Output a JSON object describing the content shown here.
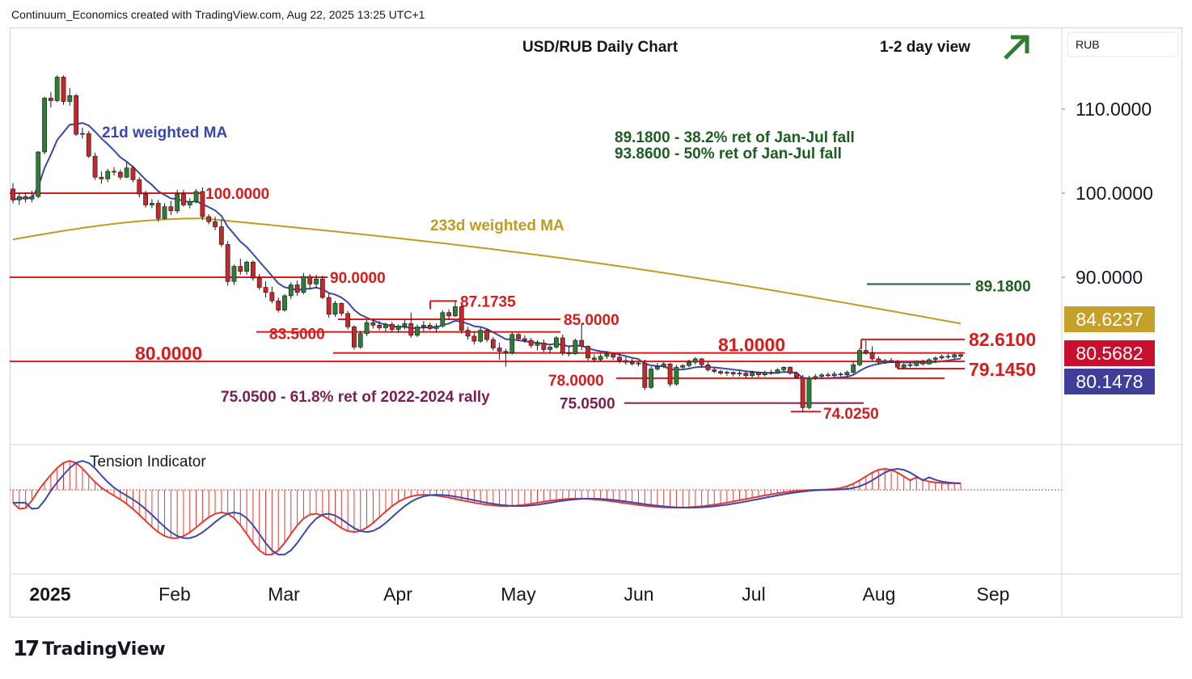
{
  "header": {
    "text": "Continuum_Economics created with TradingView.com, Aug 22, 2025 13:25 UTC+1"
  },
  "brand": {
    "mark": "17",
    "name": "TradingView"
  },
  "chart_data": {
    "type": "candlestick",
    "title": "USD/RUB Daily Chart",
    "view_label": "1-2 day view",
    "view_direction": "up",
    "currency_label": "RUB",
    "ylim": [
      70.3,
      119.7
    ],
    "y_ticks": [
      {
        "value": 110,
        "label": "110.0000"
      },
      {
        "value": 100,
        "label": "100.0000"
      },
      {
        "value": 90,
        "label": "90.0000"
      }
    ],
    "x_ticks": [
      "2025",
      "Feb",
      "Mar",
      "Apr",
      "May",
      "Jun",
      "Jul",
      "Aug",
      "Sep"
    ],
    "price_badges": [
      {
        "value": 84.6237,
        "label": "84.6237",
        "color": "#c7a02a"
      },
      {
        "value": 80.5682,
        "label": "80.5682",
        "color": "#c8102e"
      },
      {
        "value": 80.1478,
        "label": "80.1478",
        "color": "#3f3f9a"
      }
    ],
    "levels": [
      {
        "value": 100.0,
        "label": "100.0000"
      },
      {
        "value": 90.0,
        "label": "90.0000"
      },
      {
        "value": 87.1735,
        "label": "87.1735"
      },
      {
        "value": 85.0,
        "label": "85.0000"
      },
      {
        "value": 83.5,
        "label": "83.5000"
      },
      {
        "value": 82.61,
        "label": "82.6100"
      },
      {
        "value": 81.0,
        "label": "81.0000"
      },
      {
        "value": 80.0,
        "label": "80.0000"
      },
      {
        "value": 79.145,
        "label": "79.1450"
      },
      {
        "value": 78.0,
        "label": "78.0000"
      },
      {
        "value": 75.05,
        "label": "75.0500"
      },
      {
        "value": 74.025,
        "label": "74.0250"
      },
      {
        "value": 89.18,
        "label": "89.1800"
      }
    ],
    "annotations": {
      "ma21": "21d weighted MA",
      "ma233": "233d weighted MA",
      "fib_38": "89.1800 - 38.2% ret of Jan-Jul fall",
      "fib_50": "93.8600 - 50% ret of Jan-Jul fall",
      "fib_618": "75.0500 - 61.8% ret of 2022-2024 rally",
      "indicator": "Tension Indicator"
    },
    "colors": {
      "up": "#2e7d32",
      "down": "#c62828",
      "ma21": "#3949ab",
      "ma233": "#bf9b20",
      "level": "#d81b1b",
      "fib": "#1b5e20",
      "fib618": "#7b1f4f",
      "tension": "#e53935"
    },
    "candles_ohlc": [
      [
        100.5,
        101.2,
        98.8,
        99.2
      ],
      [
        99.2,
        100.0,
        98.6,
        99.6
      ],
      [
        99.6,
        100.1,
        98.9,
        99.3
      ],
      [
        99.3,
        100.3,
        98.9,
        99.6
      ],
      [
        99.6,
        105.0,
        99.4,
        104.9
      ],
      [
        104.9,
        111.5,
        104.6,
        111.3
      ],
      [
        111.3,
        112.0,
        110.2,
        111.0
      ],
      [
        111.0,
        114.0,
        110.8,
        113.8
      ],
      [
        113.8,
        114.0,
        110.5,
        110.9
      ],
      [
        110.9,
        112.5,
        110.4,
        111.6
      ],
      [
        111.6,
        111.8,
        106.8,
        107.0
      ],
      [
        107.0,
        107.8,
        106.5,
        107.1
      ],
      [
        107.1,
        107.4,
        104.2,
        104.4
      ],
      [
        104.4,
        104.8,
        101.6,
        101.9
      ],
      [
        101.9,
        102.6,
        101.1,
        101.7
      ],
      [
        101.7,
        102.9,
        101.3,
        102.6
      ],
      [
        102.6,
        103.1,
        102.1,
        102.5
      ],
      [
        102.5,
        102.8,
        101.6,
        101.9
      ],
      [
        101.9,
        103.7,
        101.8,
        103.0
      ],
      [
        103.0,
        103.3,
        101.3,
        101.6
      ],
      [
        101.6,
        101.9,
        99.5,
        99.9
      ],
      [
        99.9,
        100.3,
        98.3,
        98.6
      ],
      [
        98.6,
        99.3,
        98.2,
        98.8
      ],
      [
        98.8,
        99.2,
        96.6,
        97.0
      ],
      [
        97.0,
        98.8,
        96.9,
        98.4
      ],
      [
        98.4,
        99.1,
        97.4,
        97.9
      ],
      [
        97.9,
        100.4,
        97.6,
        99.9
      ],
      [
        99.9,
        100.4,
        98.4,
        98.6
      ],
      [
        98.6,
        99.4,
        98.2,
        99.0
      ],
      [
        99.0,
        100.5,
        98.8,
        100.2
      ],
      [
        100.2,
        100.7,
        96.8,
        97.2
      ],
      [
        97.2,
        97.5,
        96.3,
        96.6
      ],
      [
        96.6,
        97.2,
        95.6,
        96.0
      ],
      [
        96.0,
        96.9,
        93.6,
        93.9
      ],
      [
        93.9,
        94.3,
        89.0,
        89.5
      ],
      [
        89.5,
        91.5,
        89.1,
        91.3
      ],
      [
        91.3,
        92.2,
        90.3,
        90.7
      ],
      [
        90.7,
        92.0,
        90.3,
        91.8
      ],
      [
        91.8,
        92.0,
        89.6,
        89.9
      ],
      [
        89.9,
        90.4,
        88.5,
        88.8
      ],
      [
        88.8,
        89.5,
        87.6,
        88.2
      ],
      [
        88.2,
        88.9,
        86.9,
        87.2
      ],
      [
        87.2,
        87.6,
        85.8,
        86.1
      ],
      [
        86.1,
        88.0,
        85.9,
        87.8
      ],
      [
        87.8,
        89.4,
        87.4,
        89.1
      ],
      [
        89.1,
        89.6,
        87.8,
        88.2
      ],
      [
        88.2,
        90.5,
        88.0,
        90.1
      ],
      [
        90.1,
        90.4,
        88.6,
        89.2
      ],
      [
        89.2,
        90.3,
        88.7,
        89.8
      ],
      [
        89.8,
        90.2,
        87.4,
        87.6
      ],
      [
        87.6,
        88.1,
        85.2,
        85.6
      ],
      [
        85.6,
        87.2,
        85.3,
        86.9
      ],
      [
        86.9,
        87.0,
        85.4,
        85.7
      ],
      [
        85.7,
        86.0,
        83.8,
        84.1
      ],
      [
        84.1,
        84.3,
        81.4,
        81.7
      ],
      [
        81.7,
        83.6,
        81.5,
        83.3
      ],
      [
        83.3,
        84.9,
        83.0,
        84.6
      ],
      [
        84.6,
        85.1,
        83.9,
        84.3
      ],
      [
        84.3,
        84.8,
        83.7,
        84.0
      ],
      [
        84.0,
        84.6,
        83.6,
        84.4
      ],
      [
        84.4,
        84.7,
        83.5,
        83.8
      ],
      [
        83.8,
        84.4,
        83.4,
        84.2
      ],
      [
        84.2,
        84.9,
        83.8,
        84.5
      ],
      [
        84.5,
        85.8,
        82.8,
        83.1
      ],
      [
        83.1,
        84.4,
        82.9,
        84.1
      ],
      [
        84.1,
        84.8,
        83.6,
        84.3
      ],
      [
        84.3,
        84.6,
        83.7,
        83.9
      ],
      [
        83.9,
        84.5,
        83.4,
        84.2
      ],
      [
        84.2,
        86.1,
        84.0,
        85.8
      ],
      [
        85.8,
        86.2,
        85.0,
        85.4
      ],
      [
        85.4,
        87.2,
        85.3,
        86.5
      ],
      [
        86.5,
        86.7,
        83.3,
        83.7
      ],
      [
        83.7,
        84.1,
        82.6,
        83.0
      ],
      [
        83.0,
        83.5,
        82.0,
        82.4
      ],
      [
        82.4,
        84.0,
        82.2,
        83.7
      ],
      [
        83.7,
        83.8,
        82.3,
        82.6
      ],
      [
        82.6,
        82.9,
        81.3,
        81.6
      ],
      [
        81.6,
        82.2,
        80.2,
        81.2
      ],
      [
        81.2,
        81.5,
        79.4,
        81.0
      ],
      [
        81.0,
        83.5,
        80.8,
        83.2
      ],
      [
        83.2,
        83.4,
        82.4,
        82.7
      ],
      [
        82.7,
        83.1,
        82.2,
        82.5
      ],
      [
        82.5,
        82.8,
        81.6,
        81.9
      ],
      [
        81.9,
        82.5,
        81.3,
        82.2
      ],
      [
        82.2,
        82.6,
        81.1,
        81.4
      ],
      [
        81.4,
        81.9,
        81.0,
        81.7
      ],
      [
        81.7,
        83.0,
        81.5,
        82.8
      ],
      [
        82.8,
        83.2,
        80.7,
        81.0
      ],
      [
        81.0,
        81.8,
        80.6,
        80.9
      ],
      [
        80.9,
        82.7,
        80.8,
        82.5
      ],
      [
        82.5,
        84.5,
        81.3,
        81.8
      ],
      [
        81.8,
        81.9,
        80.1,
        80.4
      ],
      [
        80.4,
        80.8,
        79.9,
        80.2
      ],
      [
        80.2,
        80.9,
        80.0,
        80.6
      ],
      [
        80.6,
        81.2,
        80.3,
        80.9
      ],
      [
        80.9,
        81.0,
        80.2,
        80.5
      ],
      [
        80.5,
        80.9,
        79.8,
        80.1
      ],
      [
        80.1,
        80.5,
        79.6,
        79.9
      ],
      [
        79.9,
        80.3,
        79.5,
        79.7
      ],
      [
        79.7,
        80.1,
        79.4,
        79.8
      ],
      [
        79.8,
        80.2,
        76.6,
        76.9
      ],
      [
        76.9,
        79.4,
        76.7,
        79.1
      ],
      [
        79.1,
        79.8,
        78.9,
        79.4
      ],
      [
        79.4,
        79.9,
        79.2,
        79.7
      ],
      [
        79.7,
        79.8,
        77.0,
        77.3
      ],
      [
        77.3,
        79.6,
        77.1,
        79.3
      ],
      [
        79.3,
        79.7,
        79.1,
        79.5
      ],
      [
        79.5,
        80.2,
        79.3,
        79.9
      ],
      [
        79.9,
        80.5,
        79.6,
        80.3
      ],
      [
        80.3,
        80.4,
        79.3,
        79.6
      ],
      [
        79.6,
        79.9,
        78.8,
        79.0
      ],
      [
        79.0,
        79.3,
        78.6,
        78.8
      ],
      [
        78.8,
        79.0,
        78.4,
        78.6
      ],
      [
        78.6,
        78.9,
        78.3,
        78.7
      ],
      [
        78.7,
        78.8,
        78.2,
        78.5
      ],
      [
        78.5,
        78.9,
        78.2,
        78.6
      ],
      [
        78.6,
        78.8,
        78.0,
        78.3
      ],
      [
        78.3,
        78.9,
        78.1,
        78.7
      ],
      [
        78.7,
        78.8,
        78.1,
        78.4
      ],
      [
        78.4,
        78.9,
        78.2,
        78.7
      ],
      [
        78.7,
        79.0,
        78.4,
        78.6
      ],
      [
        78.6,
        79.2,
        78.5,
        79.0
      ],
      [
        79.0,
        79.4,
        78.8,
        79.3
      ],
      [
        79.3,
        79.4,
        78.4,
        78.6
      ],
      [
        78.6,
        78.8,
        77.9,
        78.1
      ],
      [
        78.1,
        78.4,
        74.0,
        74.5
      ],
      [
        74.5,
        78.3,
        74.3,
        78.0
      ],
      [
        78.0,
        78.5,
        77.8,
        78.2
      ],
      [
        78.2,
        78.6,
        77.9,
        78.4
      ],
      [
        78.4,
        78.7,
        78.1,
        78.3
      ],
      [
        78.3,
        78.8,
        78.1,
        78.5
      ],
      [
        78.5,
        78.7,
        78.2,
        78.4
      ],
      [
        78.4,
        78.9,
        78.2,
        78.7
      ],
      [
        78.7,
        79.9,
        78.5,
        79.6
      ],
      [
        79.6,
        81.6,
        79.4,
        81.3
      ],
      [
        81.3,
        82.5,
        80.8,
        81.0
      ],
      [
        81.0,
        81.8,
        80.1,
        80.3
      ],
      [
        80.3,
        80.6,
        79.6,
        79.9
      ],
      [
        79.9,
        80.3,
        79.7,
        80.1
      ],
      [
        80.1,
        80.4,
        79.8,
        79.9
      ],
      [
        79.9,
        80.2,
        79.1,
        79.3
      ],
      [
        79.3,
        79.8,
        79.1,
        79.6
      ],
      [
        79.6,
        79.9,
        79.3,
        79.5
      ],
      [
        79.5,
        80.1,
        79.4,
        80.0
      ],
      [
        80.0,
        80.2,
        79.5,
        79.7
      ],
      [
        79.7,
        80.4,
        79.6,
        80.2
      ],
      [
        80.2,
        80.6,
        79.9,
        80.4
      ],
      [
        80.4,
        80.8,
        80.2,
        80.6
      ],
      [
        80.6,
        80.9,
        80.3,
        80.5
      ],
      [
        80.5,
        80.9,
        80.3,
        80.8
      ],
      [
        80.8,
        80.9,
        80.4,
        80.6
      ]
    ]
  }
}
